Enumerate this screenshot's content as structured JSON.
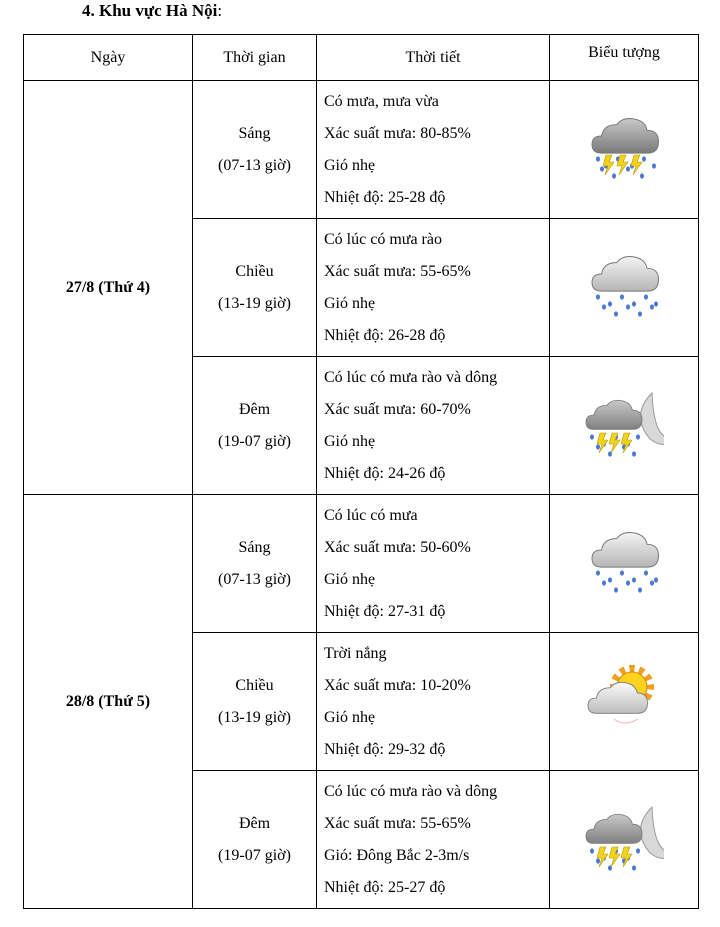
{
  "title": "4. Khu vực Hà Nội",
  "title_colon": ":",
  "headers": [
    "Ngày",
    "Thời gian",
    "Thời tiết",
    "Biểu tượng"
  ],
  "days": [
    {
      "date": "27/8 (Thứ 4)",
      "periods": [
        {
          "name": "Sáng",
          "hours": "(07-13 giờ)",
          "weather": [
            "Có mưa, mưa vừa",
            "Xác suất mưa: 80-85%",
            "Gió nhẹ",
            "Nhiệt độ: 25-28 độ"
          ],
          "icon": "thunderstorm-rain-icon"
        },
        {
          "name": "Chiều",
          "hours": "(13-19 giờ)",
          "weather": [
            "Có lúc có mưa rào",
            "Xác suất mưa: 55-65%",
            "Gió nhẹ",
            "Nhiệt độ: 26-28 độ"
          ],
          "icon": "rain-cloud-icon"
        },
        {
          "name": "Đêm",
          "hours": "(19-07 giờ)",
          "weather": [
            "Có lúc có mưa rào và dông",
            "Xác suất mưa: 60-70%",
            "Gió nhẹ",
            "Nhiệt độ: 24-26 độ"
          ],
          "icon": "night-thunderstorm-icon"
        }
      ]
    },
    {
      "date": "28/8 (Thứ 5)",
      "periods": [
        {
          "name": "Sáng",
          "hours": "(07-13 giờ)",
          "weather": [
            "Có lúc có mưa",
            "Xác suất mưa: 50-60%",
            "Gió nhẹ",
            "Nhiệt độ: 27-31 độ"
          ],
          "icon": "rain-cloud-icon"
        },
        {
          "name": "Chiều",
          "hours": "(13-19 giờ)",
          "weather": [
            "Trời nắng",
            "Xác suất mưa: 10-20%",
            "Gió nhẹ",
            "Nhiệt độ: 29-32 độ"
          ],
          "icon": "sun-cloud-icon"
        },
        {
          "name": "Đêm",
          "hours": "(19-07 giờ)",
          "weather": [
            "Có lúc có mưa rào và dông",
            "Xác suất mưa: 55-65%",
            "Gió: Đông Bắc 2-3m/s",
            "Nhiệt độ: 25-27 độ"
          ],
          "icon": "night-thunderstorm-icon"
        }
      ]
    }
  ]
}
